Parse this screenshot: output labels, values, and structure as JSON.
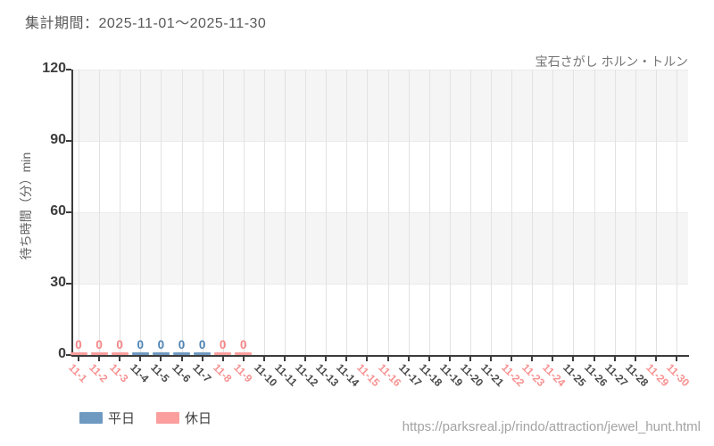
{
  "header": {
    "period_label": "集計期間：2025-11-01～2025-11-30"
  },
  "chart_data": {
    "type": "bar",
    "title": "宝石さがし ホルン・トルン",
    "ylabel": "待ち時間（分）min",
    "ylim": [
      0,
      120
    ],
    "yticks": [
      0,
      30,
      60,
      90,
      120
    ],
    "legend_position": "bottom-left",
    "grid": "alternating horizontal bands + vertical gridlines",
    "categories": [
      "11-1",
      "11-2",
      "11-3",
      "11-4",
      "11-5",
      "11-6",
      "11-7",
      "11-8",
      "11-9",
      "11-10",
      "11-11",
      "11-12",
      "11-13",
      "11-14",
      "11-15",
      "11-16",
      "11-17",
      "11-18",
      "11-19",
      "11-20",
      "11-21",
      "11-22",
      "11-23",
      "11-24",
      "11-25",
      "11-26",
      "11-27",
      "11-28",
      "11-29",
      "11-30"
    ],
    "day_types": [
      "holiday",
      "holiday",
      "holiday",
      "weekday",
      "weekday",
      "weekday",
      "weekday",
      "holiday",
      "holiday",
      "weekday",
      "weekday",
      "weekday",
      "weekday",
      "weekday",
      "holiday",
      "holiday",
      "weekday",
      "weekday",
      "weekday",
      "weekday",
      "weekday",
      "holiday",
      "holiday",
      "holiday",
      "weekday",
      "weekday",
      "weekday",
      "weekday",
      "holiday",
      "holiday"
    ],
    "series": [
      {
        "name": "平日",
        "day_type": "weekday",
        "color": "#6e99c1",
        "value_label_color": "#4d84b5",
        "tick_label_color": "#4a4a4a",
        "values": [
          null,
          null,
          null,
          0,
          0,
          0,
          0,
          null,
          null,
          null,
          null,
          null,
          null,
          null,
          null,
          null,
          null,
          null,
          null,
          null,
          null,
          null,
          null,
          null,
          null,
          null,
          null,
          null,
          null,
          null
        ]
      },
      {
        "name": "休日",
        "day_type": "holiday",
        "color": "#fb9e9e",
        "value_label_color": "#f78585",
        "tick_label_color": "#f79191",
        "values": [
          0,
          0,
          0,
          null,
          null,
          null,
          null,
          0,
          0,
          null,
          null,
          null,
          null,
          null,
          null,
          null,
          null,
          null,
          null,
          null,
          null,
          null,
          null,
          null,
          null,
          null,
          null,
          null,
          null,
          null
        ]
      }
    ],
    "colors": {
      "band": "#f5f5f5",
      "vgrid": "#e2e2e2",
      "axis": "#3c3c3c",
      "ytick_label": "#3d3d3d"
    }
  },
  "legend": {
    "items": [
      {
        "label": "平日",
        "color": "#6e99c1"
      },
      {
        "label": "休日",
        "color": "#fb9e9e"
      }
    ]
  },
  "footer": {
    "url": "https://parksreal.jp/rindo/attraction/jewel_hunt.html"
  }
}
